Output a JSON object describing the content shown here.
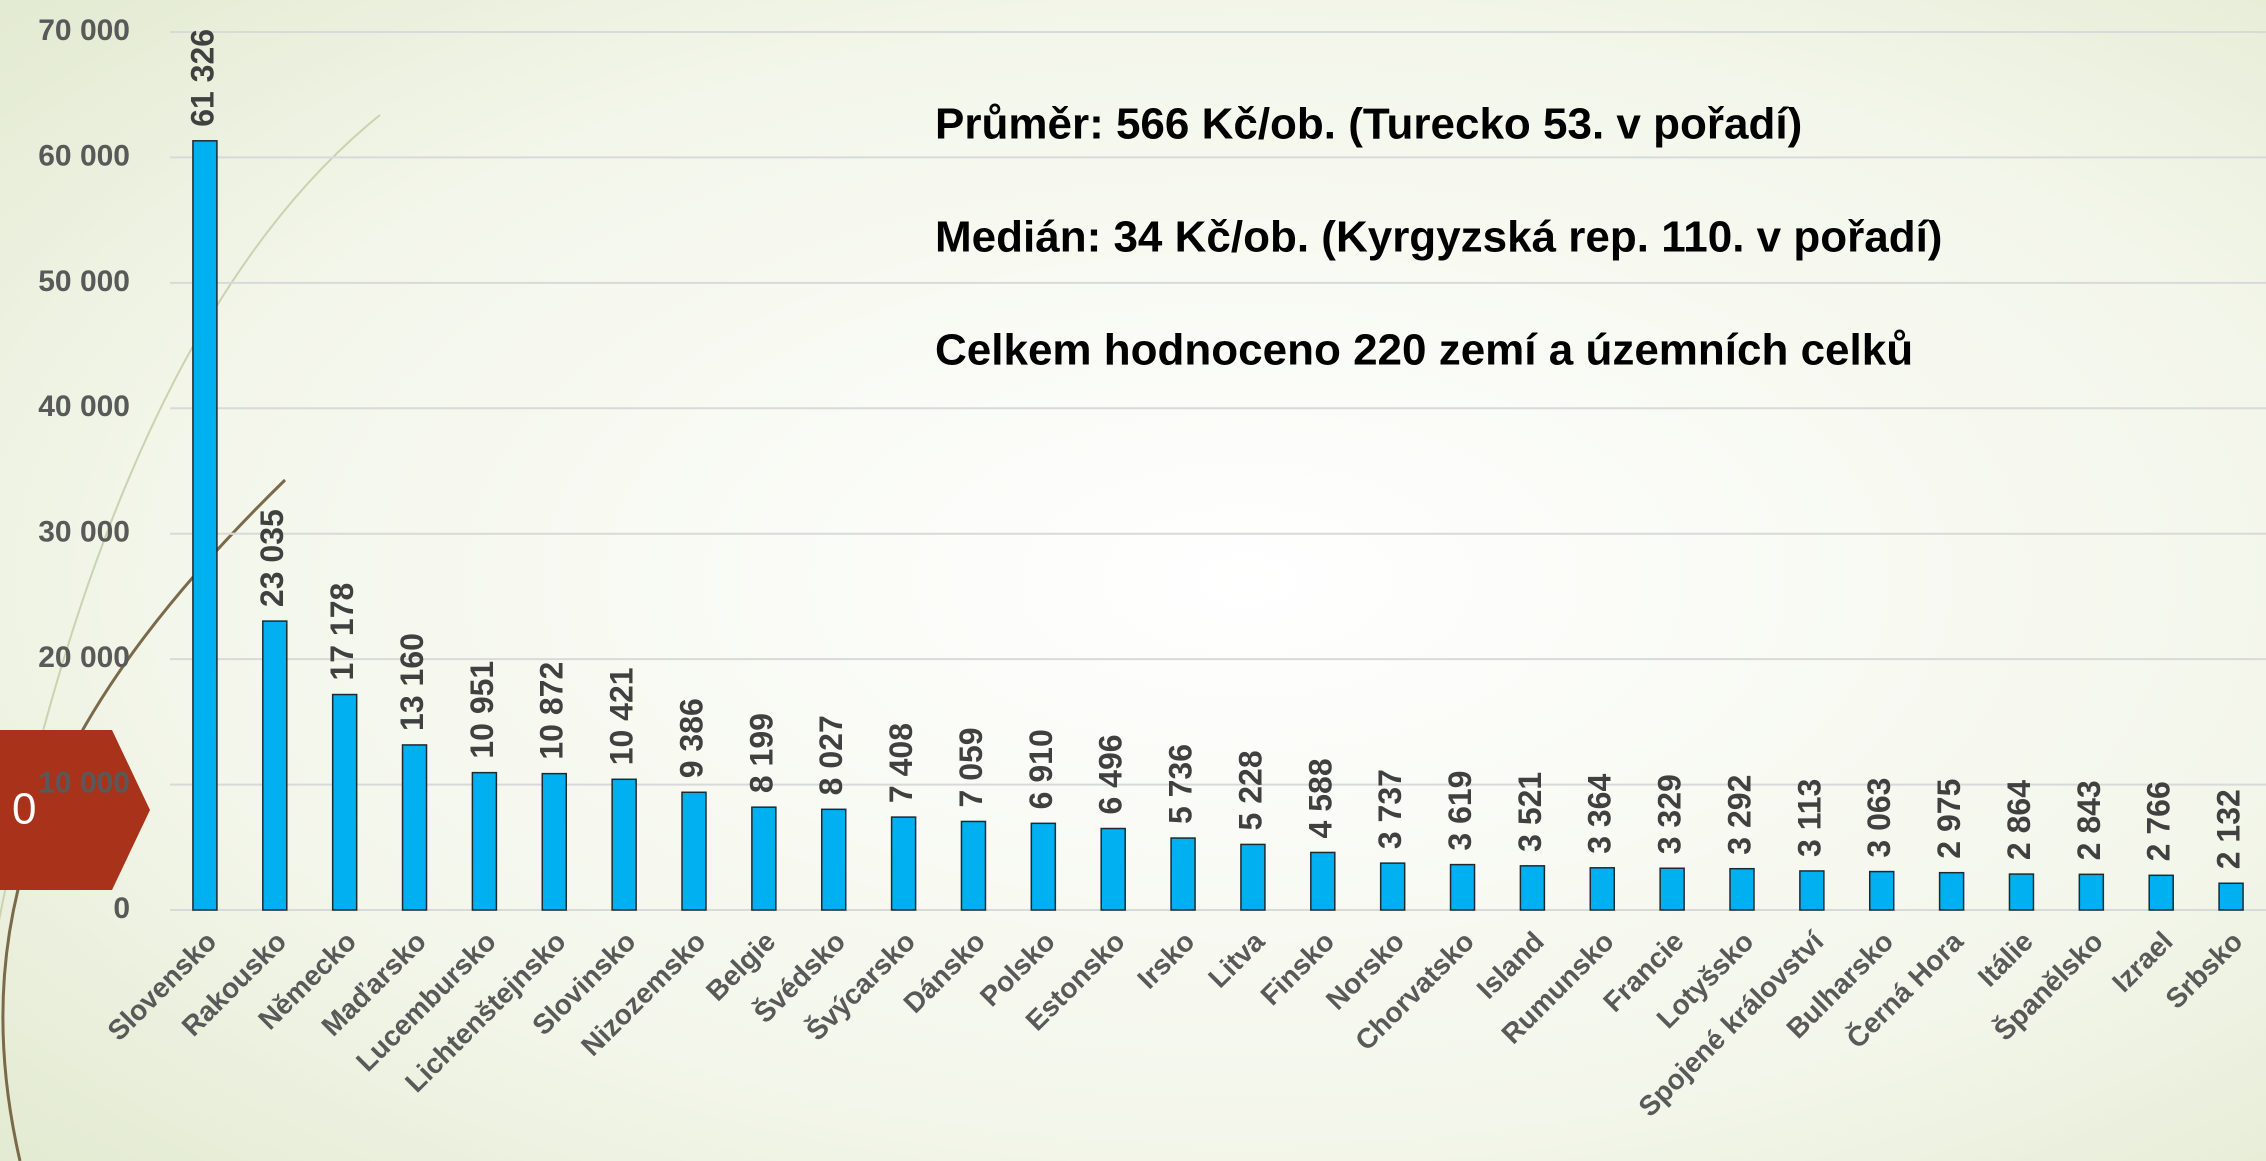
{
  "slide_number": "0",
  "chart_data": {
    "type": "bar",
    "annotations": [
      "Průměr: 566 Kč/ob. (Turecko 53. v pořadí)",
      "Medián:  34 Kč/ob. (Kyrgyzská rep. 110. v pořadí)",
      "Celkem hodnoceno 220 zemí a územních celků"
    ],
    "categories": [
      "Slovensko",
      "Rakousko",
      "Německo",
      "Maďarsko",
      "Lucembursko",
      "Lichtenštejnsko",
      "Slovinsko",
      "Nizozemsko",
      "Belgie",
      "Švédsko",
      "Švýcarsko",
      "Dánsko",
      "Polsko",
      "Estonsko",
      "Irsko",
      "Litva",
      "Finsko",
      "Norsko",
      "Chorvatsko",
      "Island",
      "Rumunsko",
      "Francie",
      "Lotyšsko",
      "Spojené království",
      "Bulharsko",
      "Černá Hora",
      "Itálie",
      "Španělsko",
      "Izrael",
      "Srbsko"
    ],
    "values": [
      61326,
      23035,
      17178,
      13160,
      10951,
      10872,
      10421,
      9386,
      8199,
      8027,
      7408,
      7059,
      6910,
      6496,
      5736,
      5228,
      4588,
      3737,
      3619,
      3521,
      3364,
      3329,
      3292,
      3113,
      3063,
      2975,
      2864,
      2843,
      2766,
      2132
    ],
    "value_labels": [
      "61 326",
      "23 035",
      "17 178",
      "13 160",
      "10 951",
      "10 872",
      "10 421",
      "9 386",
      "8 199",
      "8 027",
      "7 408",
      "7 059",
      "6 910",
      "6 496",
      "5 736",
      "5 228",
      "4 588",
      "3 737",
      "3 619",
      "3 521",
      "3 364",
      "3 329",
      "3 292",
      "3 113",
      "3 063",
      "2 975",
      "2 864",
      "2 843",
      "2 766",
      "2 132"
    ],
    "color": "#00b0f0",
    "ylim": [
      0,
      70000
    ],
    "yticks": [
      0,
      {
        "value": 10000,
        "label": "10 000"
      },
      {
        "value": 20000,
        "label": "20 000"
      },
      {
        "value": 30000,
        "label": "30 000"
      },
      {
        "value": 40000,
        "label": "40 000"
      },
      {
        "value": 50000,
        "label": "50 000"
      },
      {
        "value": 60000,
        "label": "60 000"
      },
      {
        "value": 70000,
        "label": "70 000"
      }
    ],
    "grid": true
  }
}
